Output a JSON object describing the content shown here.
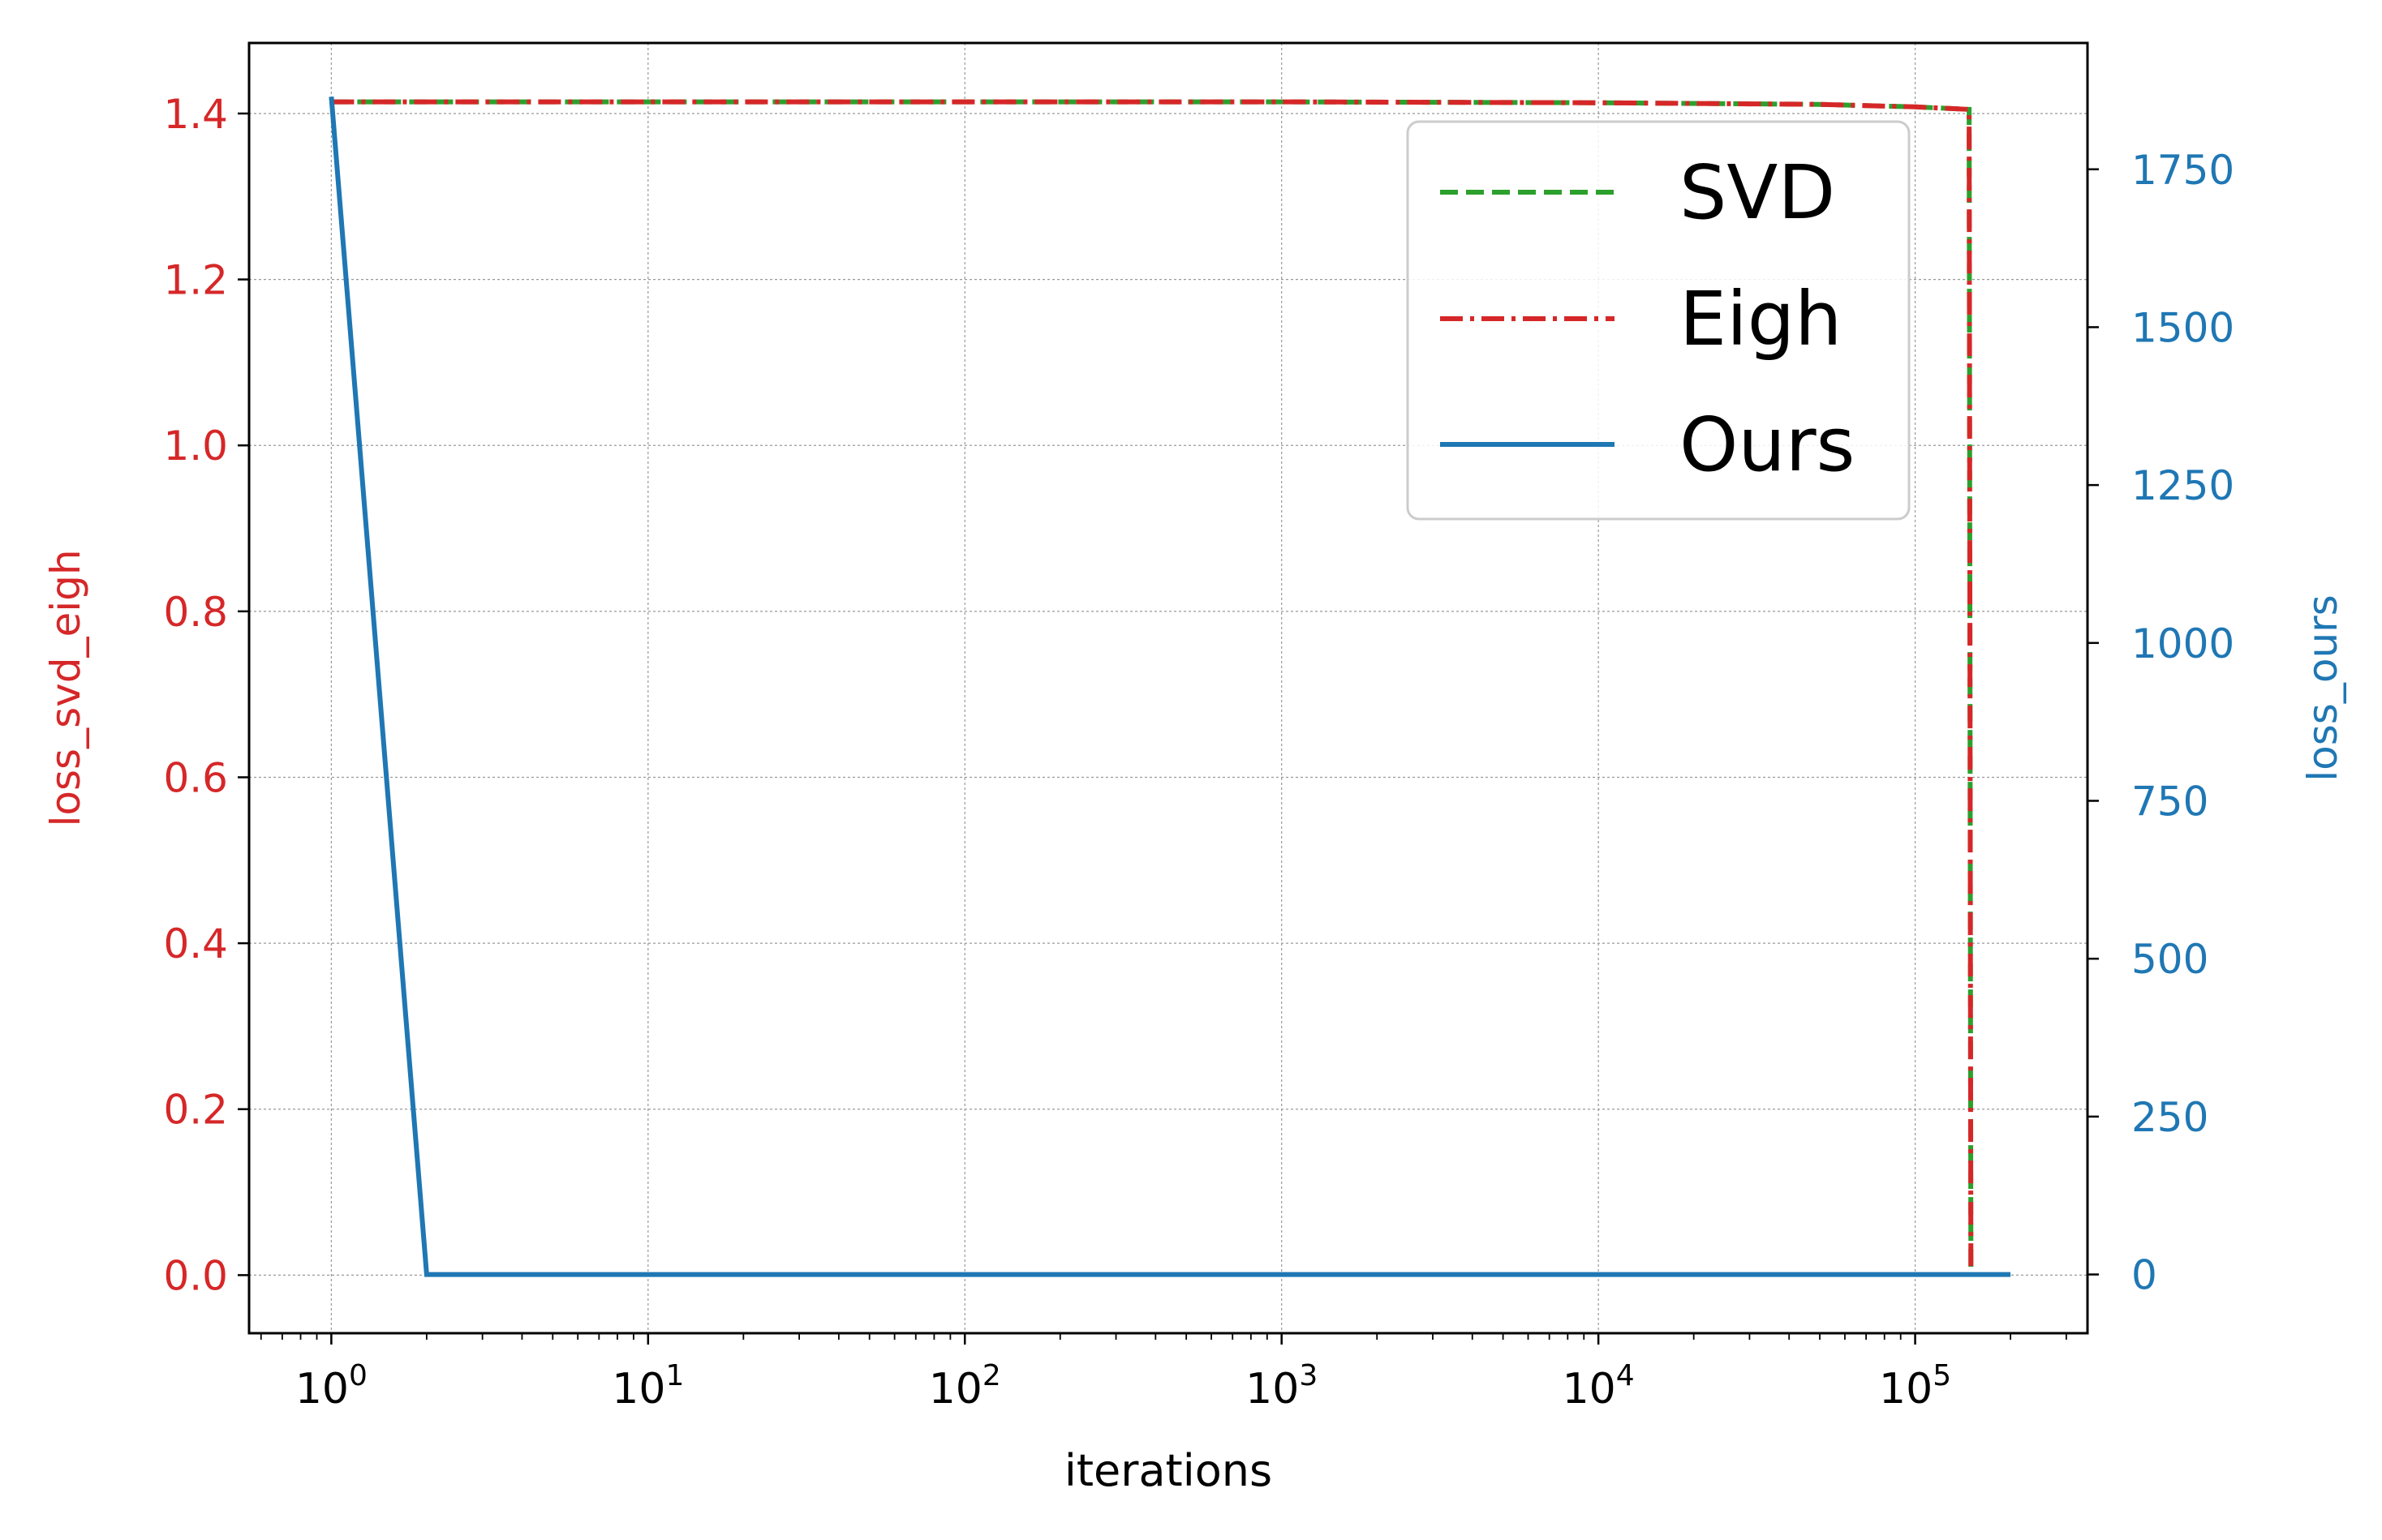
{
  "chart_data": {
    "type": "line",
    "xlabel": "iterations",
    "ylabel_left": "loss_svd_eigh",
    "ylabel_right": "loss_ours",
    "x_scale": "log",
    "xlim": [
      0.55,
      350000
    ],
    "ylim_left": [
      -0.07,
      1.485
    ],
    "ylim_right": [
      -93,
      1950
    ],
    "x_ticks": [
      {
        "value": 1,
        "base": "10",
        "exp": "0"
      },
      {
        "value": 10,
        "base": "10",
        "exp": "1"
      },
      {
        "value": 100,
        "base": "10",
        "exp": "2"
      },
      {
        "value": 1000,
        "base": "10",
        "exp": "3"
      },
      {
        "value": 10000,
        "base": "10",
        "exp": "4"
      },
      {
        "value": 100000,
        "base": "10",
        "exp": "5"
      }
    ],
    "y_ticks_left": [
      "0.0",
      "0.2",
      "0.4",
      "0.6",
      "0.8",
      "1.0",
      "1.2",
      "1.4"
    ],
    "y_ticks_right": [
      "0",
      "250",
      "500",
      "750",
      "1000",
      "1250",
      "1500",
      "1750"
    ],
    "grid": true,
    "legend_position": "top-right",
    "colors": {
      "svd": "#2ca02c",
      "eigh": "#d62728",
      "ours": "#1f77b4",
      "left_axis": "#d62728",
      "right_axis": "#1f77b4"
    },
    "series": [
      {
        "name": "SVD",
        "axis": "left",
        "style": "dashed",
        "color": "#2ca02c",
        "x": [
          1,
          10,
          100,
          1000,
          10000,
          50000,
          100000,
          148000,
          150000
        ],
        "y": [
          1.414,
          1.414,
          1.414,
          1.414,
          1.413,
          1.411,
          1.408,
          1.405,
          0.0
        ]
      },
      {
        "name": "Eigh",
        "axis": "left",
        "style": "dashdot",
        "color": "#d62728",
        "x": [
          1,
          10,
          100,
          1000,
          10000,
          50000,
          100000,
          148000,
          150000
        ],
        "y": [
          1.414,
          1.414,
          1.414,
          1.414,
          1.413,
          1.411,
          1.408,
          1.405,
          0.0
        ]
      },
      {
        "name": "Ours",
        "axis": "right",
        "style": "solid",
        "color": "#1f77b4",
        "x": [
          1,
          2,
          10,
          100,
          1000,
          10000,
          100000,
          200000
        ],
        "y": [
          1865,
          0,
          0,
          0,
          0,
          0,
          0,
          0
        ]
      }
    ]
  }
}
